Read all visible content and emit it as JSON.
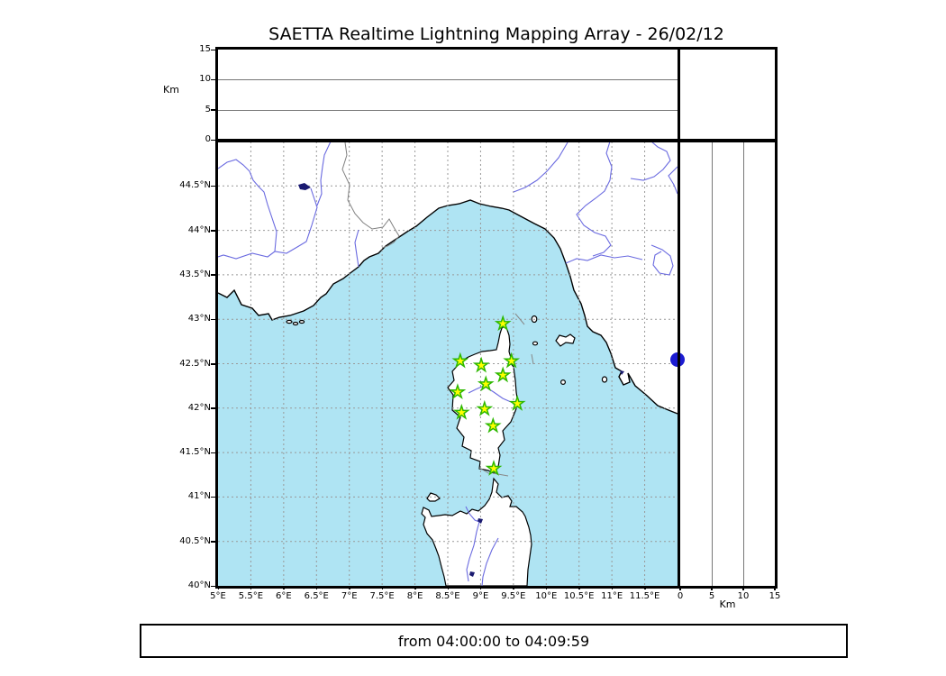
{
  "title": "SAETTA Realtime Lightning Mapping Array - 26/02/12",
  "time_range": "from 04:00:00 to 04:09:59",
  "colors": {
    "sea": "#afe4f3",
    "land": "#ffffff",
    "coast": "#000000",
    "river": "#6a6ae0",
    "lake": "#1a1a70",
    "grid": "#999999",
    "country_border": "#808080",
    "panel_grid": "#777777",
    "star_fill": "#ffff00",
    "star_stroke": "#2db800",
    "event_dot": "#1b1bd1"
  },
  "map": {
    "lon_min": 5,
    "lon_max": 12,
    "lat_min": 40,
    "lat_max": 45,
    "grid_step_deg": 0.5,
    "lon_ticks": [
      {
        "label": "5°E",
        "deg": 5.0
      },
      {
        "label": "5.5°E",
        "deg": 5.5
      },
      {
        "label": "6°E",
        "deg": 6.0
      },
      {
        "label": "6.5°E",
        "deg": 6.5
      },
      {
        "label": "7°E",
        "deg": 7.0
      },
      {
        "label": "7.5°E",
        "deg": 7.5
      },
      {
        "label": "8°E",
        "deg": 8.0
      },
      {
        "label": "8.5°E",
        "deg": 8.5
      },
      {
        "label": "9°E",
        "deg": 9.0
      },
      {
        "label": "9.5°E",
        "deg": 9.5
      },
      {
        "label": "10°E",
        "deg": 10.0
      },
      {
        "label": "10.5°E",
        "deg": 10.5
      },
      {
        "label": "11°E",
        "deg": 11.0
      },
      {
        "label": "11.5°E",
        "deg": 11.5
      }
    ],
    "lat_ticks": [
      {
        "label": "40°N",
        "deg": 40.0
      },
      {
        "label": "40.5°N",
        "deg": 40.5
      },
      {
        "label": "41°N",
        "deg": 41.0
      },
      {
        "label": "41.5°N",
        "deg": 41.5
      },
      {
        "label": "42°N",
        "deg": 42.0
      },
      {
        "label": "42.5°N",
        "deg": 42.5
      },
      {
        "label": "43°N",
        "deg": 43.0
      },
      {
        "label": "43.5°N",
        "deg": 43.5
      },
      {
        "label": "44°N",
        "deg": 44.0
      },
      {
        "label": "44.5°N",
        "deg": 44.5
      }
    ]
  },
  "altitude_axis": {
    "label": "Km",
    "max_km": 15,
    "ticks": [
      {
        "label": "0",
        "km": 0
      },
      {
        "label": "5",
        "km": 5
      },
      {
        "label": "10",
        "km": 10
      },
      {
        "label": "15",
        "km": 15
      }
    ],
    "gridlines_km": [
      5,
      10
    ]
  },
  "stations": [
    {
      "lon": 9.34,
      "lat": 42.95
    },
    {
      "lon": 8.69,
      "lat": 42.53
    },
    {
      "lon": 9.01,
      "lat": 42.48
    },
    {
      "lon": 9.47,
      "lat": 42.53
    },
    {
      "lon": 9.34,
      "lat": 42.37
    },
    {
      "lon": 9.08,
      "lat": 42.27
    },
    {
      "lon": 8.65,
      "lat": 42.18
    },
    {
      "lon": 8.71,
      "lat": 41.95
    },
    {
      "lon": 9.06,
      "lat": 41.99
    },
    {
      "lon": 9.56,
      "lat": 42.05
    },
    {
      "lon": 9.19,
      "lat": 41.8
    },
    {
      "lon": 9.2,
      "lat": 41.32
    }
  ],
  "event_dot": {
    "lon": 12.0,
    "lat": 42.55
  }
}
